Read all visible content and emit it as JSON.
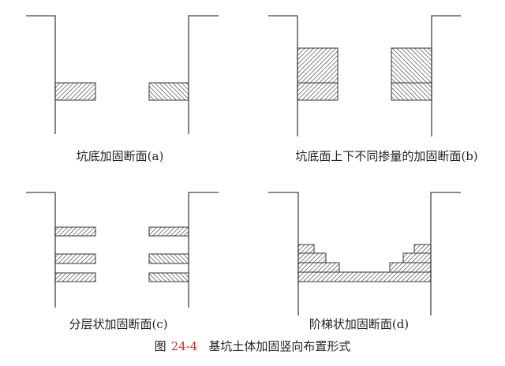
{
  "panels": [
    {
      "id": "a",
      "caption": "坑底加固断面(a)"
    },
    {
      "id": "b",
      "caption": "坑底面上下不同掺量的加固断面(b)"
    },
    {
      "id": "c",
      "caption": "分层状加固断面(c)"
    },
    {
      "id": "d",
      "caption": "阶梯状加固断面(d)"
    }
  ],
  "figure": {
    "label": "图",
    "number": "24-4",
    "title": "基坑土体加固竖向布置形式"
  },
  "colors": {
    "line": "#444444",
    "figure_number": "#c0392b"
  }
}
